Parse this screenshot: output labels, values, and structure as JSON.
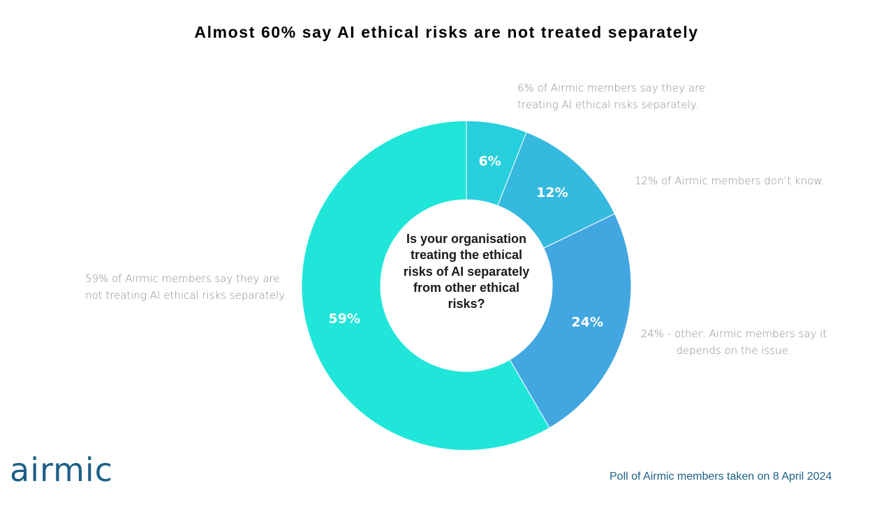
{
  "title": "Almost 60% say AI ethical risks are not treated separately",
  "center_question": "Is your organisation treating the ethical risks of AI separately from other ethical risks?",
  "callouts": {
    "yes": "6% of Airmic members say they are treating AI ethical risks separately.",
    "dont_know": "12% of Airmic members don’t know.",
    "other": "24% - other: Airmic members say it depends on the issue.",
    "no": "59% of Airmic members say they are not treating AI ethical risks separately."
  },
  "logo": {
    "text": "airmic"
  },
  "footnote": "Poll of Airmic members taken on 8 April 2024",
  "chart_data": {
    "type": "pie",
    "donut": true,
    "title": "Almost 60% say AI ethical risks are not treated separately",
    "slices": [
      {
        "key": "yes",
        "value": 6,
        "label": "6%",
        "color": "#27cfdd"
      },
      {
        "key": "dont_know",
        "value": 12,
        "label": "12%",
        "color": "#36b9df"
      },
      {
        "key": "other",
        "value": 24,
        "label": "24%",
        "color": "#42a7e1"
      },
      {
        "key": "no",
        "value": 59,
        "label": "59%",
        "color": "#1fe6d9"
      }
    ]
  }
}
